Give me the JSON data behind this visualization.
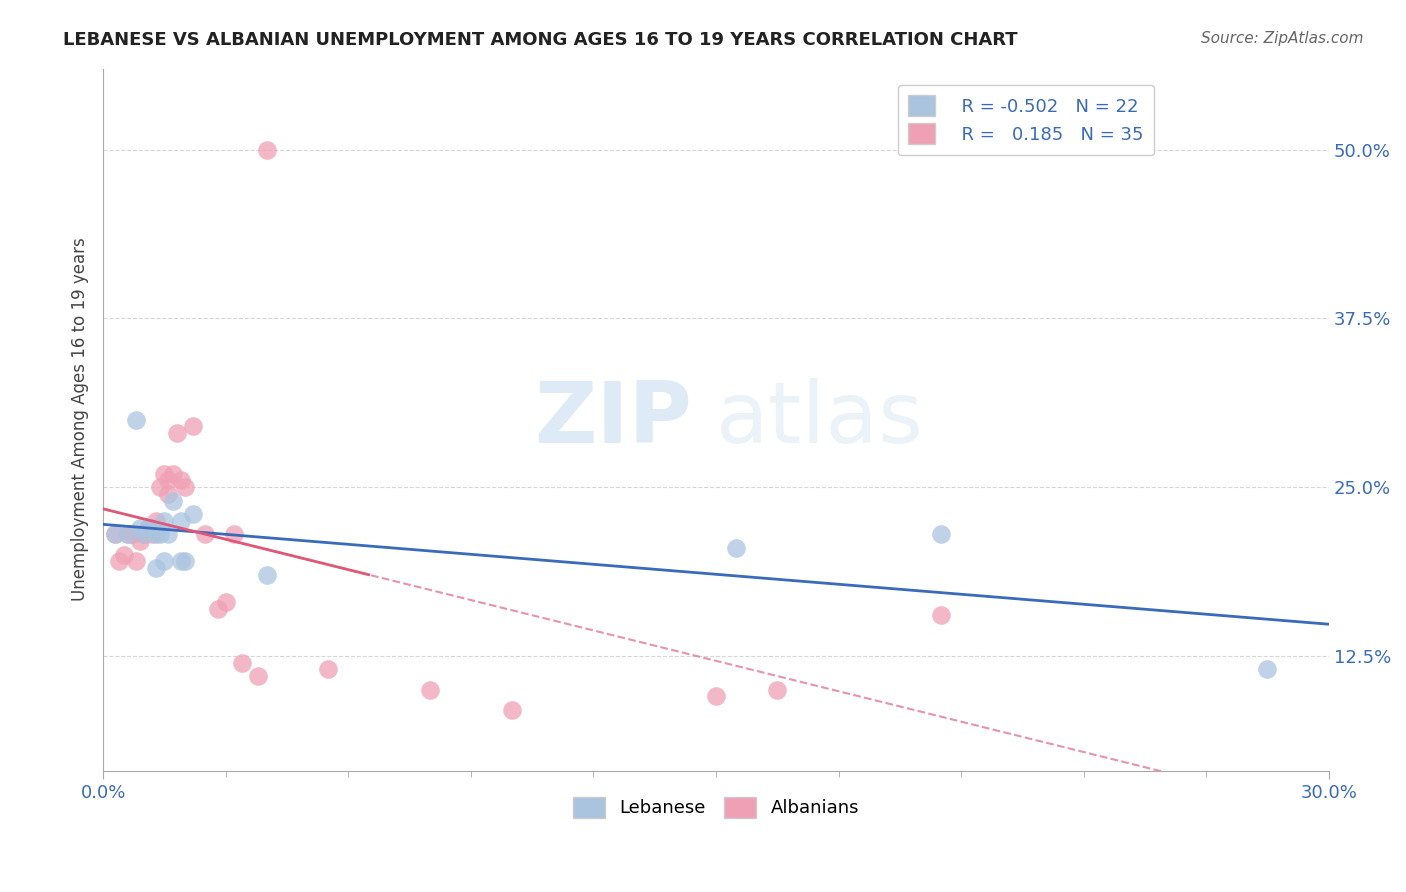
{
  "title": "LEBANESE VS ALBANIAN UNEMPLOYMENT AMONG AGES 16 TO 19 YEARS CORRELATION CHART",
  "source": "Source: ZipAtlas.com",
  "ylabel": "Unemployment Among Ages 16 to 19 years",
  "xlim": [
    0.0,
    0.3
  ],
  "ylim": [
    0.04,
    0.56
  ],
  "yticks": [
    0.125,
    0.25,
    0.375,
    0.5
  ],
  "ytick_labels": [
    "12.5%",
    "25.0%",
    "37.5%",
    "50.0%"
  ],
  "xtick_labels": [
    "0.0%",
    "30.0%"
  ],
  "blue_color": "#aac4e0",
  "pink_color": "#f0a0b5",
  "blue_line_color": "#3a6bba",
  "pink_line_color": "#e05878",
  "pink_dash_color": "#e07898",
  "watermark_zip": "ZIP",
  "watermark_atlas": "atlas",
  "lebanese_x": [
    0.003,
    0.006,
    0.008,
    0.009,
    0.01,
    0.011,
    0.012,
    0.013,
    0.013,
    0.014,
    0.015,
    0.015,
    0.016,
    0.017,
    0.019,
    0.019,
    0.02,
    0.022,
    0.04,
    0.155,
    0.205,
    0.285
  ],
  "lebanese_y": [
    0.215,
    0.215,
    0.3,
    0.22,
    0.215,
    0.22,
    0.22,
    0.215,
    0.19,
    0.215,
    0.225,
    0.195,
    0.215,
    0.24,
    0.225,
    0.195,
    0.195,
    0.23,
    0.185,
    0.205,
    0.215,
    0.115
  ],
  "albanian_x": [
    0.003,
    0.004,
    0.005,
    0.006,
    0.007,
    0.008,
    0.009,
    0.01,
    0.01,
    0.011,
    0.012,
    0.012,
    0.013,
    0.014,
    0.015,
    0.016,
    0.016,
    0.017,
    0.018,
    0.019,
    0.02,
    0.022,
    0.025,
    0.028,
    0.03,
    0.032,
    0.034,
    0.038,
    0.04,
    0.055,
    0.08,
    0.1,
    0.15,
    0.165,
    0.205
  ],
  "albanian_y": [
    0.215,
    0.195,
    0.2,
    0.215,
    0.215,
    0.195,
    0.21,
    0.215,
    0.215,
    0.22,
    0.215,
    0.22,
    0.225,
    0.25,
    0.26,
    0.255,
    0.245,
    0.26,
    0.29,
    0.255,
    0.25,
    0.295,
    0.215,
    0.16,
    0.165,
    0.215,
    0.12,
    0.11,
    0.5,
    0.115,
    0.1,
    0.085,
    0.095,
    0.1,
    0.155
  ],
  "background_color": "#ffffff",
  "grid_color": "#cccccc"
}
